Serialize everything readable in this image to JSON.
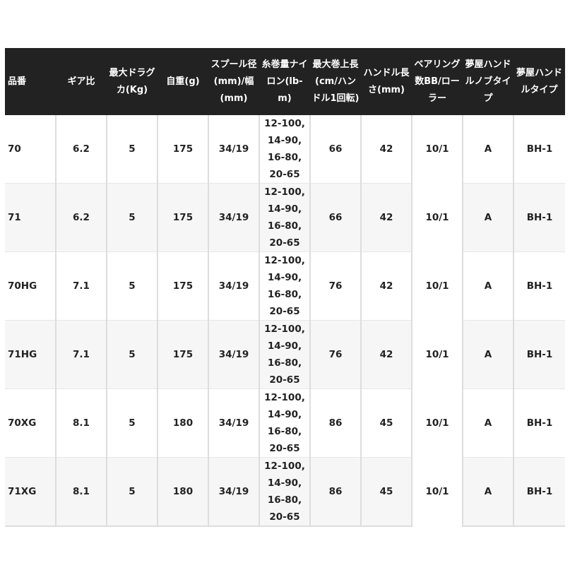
{
  "headers": [
    "品番",
    "ギア比",
    "最大ドラグカ(Kg)",
    "自重(g)",
    "スプール径(mm)/幅(mm)",
    "糸巻量ナイロン(lb-m)",
    "最大巻上長(cm/ハンドル1回転)",
    "ハンドル長さ(mm)",
    "ベアリング数BB/ローラー",
    "夢屋ハンドルノブタイプ",
    "夢屋ハンドルタイプ"
  ],
  "rows": [
    [
      "70",
      "6.2",
      "5",
      "175",
      "34/19",
      "12-100, 14-90, 16-80, 20-65",
      "66",
      "42",
      "10/1",
      "A",
      "BH-1"
    ],
    [
      "71",
      "6.2",
      "5",
      "175",
      "34/19",
      "12-100, 14-90, 16-80, 20-65",
      "66",
      "42",
      "10/1",
      "A",
      "BH-1"
    ],
    [
      "70HG",
      "7.1",
      "5",
      "175",
      "34/19",
      "12-100, 14-90, 16-80, 20-65",
      "76",
      "42",
      "10/1",
      "A",
      "BH-1"
    ],
    [
      "71HG",
      "7.1",
      "5",
      "175",
      "34/19",
      "12-100, 14-90, 16-80, 20-65",
      "76",
      "42",
      "10/1",
      "A",
      "BH-1"
    ],
    [
      "70XG",
      "8.1",
      "5",
      "180",
      "34/19",
      "12-100, 14-90, 16-80, 20-65",
      "86",
      "45",
      "10/1",
      "A",
      "BH-1"
    ],
    [
      "71XG",
      "8.1",
      "5",
      "180",
      "34/19",
      "12-100, 14-90, 16-80, 20-65",
      "86",
      "45",
      "10/1",
      "A",
      "BH-1"
    ]
  ]
}
